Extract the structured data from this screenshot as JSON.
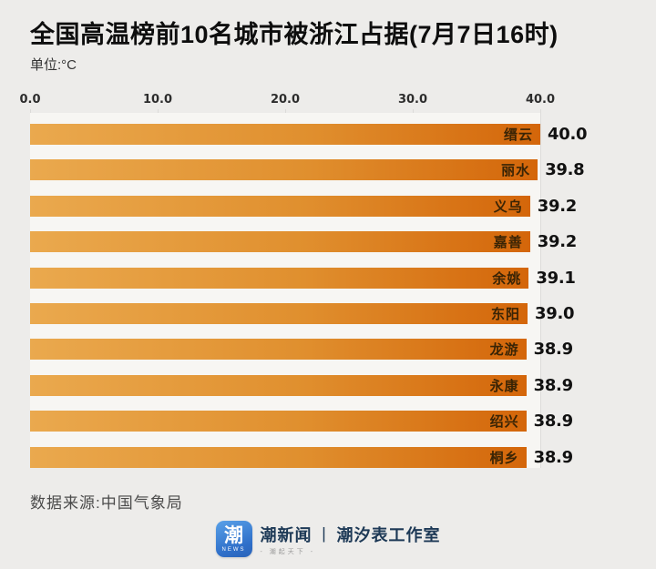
{
  "header": {
    "title": "全国高温榜前10名城市被浙江占据(7月7日16时)",
    "unit_label": "单位:°C"
  },
  "chart_data": {
    "type": "bar",
    "orientation": "horizontal",
    "title": "全国高温榜前10名城市被浙江占据(7月7日16时)",
    "unit": "°C",
    "categories": [
      "缙云",
      "丽水",
      "义乌",
      "嘉善",
      "余姚",
      "东阳",
      "龙游",
      "永康",
      "绍兴",
      "桐乡"
    ],
    "values": [
      40.0,
      39.8,
      39.2,
      39.2,
      39.1,
      39.0,
      38.9,
      38.9,
      38.9,
      38.9
    ],
    "value_labels": [
      "40.0",
      "39.8",
      "39.2",
      "39.2",
      "39.1",
      "39.0",
      "38.9",
      "38.9",
      "38.9",
      "38.9"
    ],
    "x_ticks": [
      "0.0",
      "10.0",
      "20.0",
      "30.0",
      "40.0"
    ],
    "xlim": [
      0,
      40
    ],
    "grid": true,
    "legend": false,
    "bar_gradient": [
      "#EAA94E",
      "#D4660A"
    ],
    "city_label_color": "#3A2405",
    "value_label_color": "#111111",
    "page_background": "#EDECEA",
    "plot_background": "#F7F6F3"
  },
  "footer": {
    "source": "数据来源:中国气象局",
    "logo": {
      "icon_char": "潮",
      "icon_caption": "NEWS",
      "brand": "潮新闻",
      "divider": "丨",
      "studio": "潮汐表工作室",
      "tagline": "- 潮起天下 -",
      "icon_color": "#2F6FC9"
    }
  }
}
